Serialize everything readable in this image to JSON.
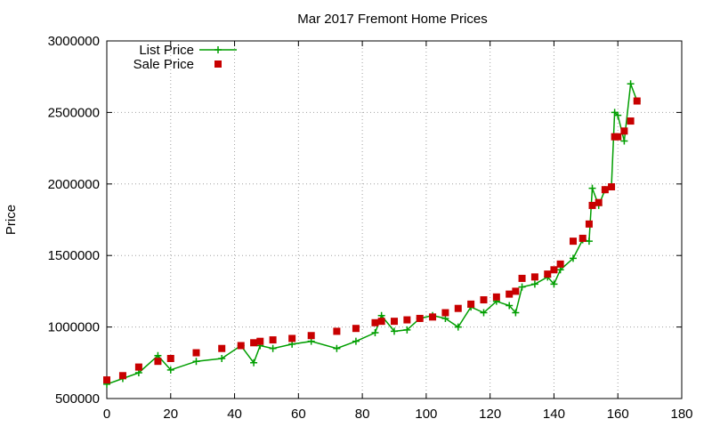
{
  "chart_data": {
    "type": "line",
    "title": "Mar 2017 Fremont Home Prices",
    "xlabel": "",
    "ylabel": "Price",
    "xlim": [
      0,
      180
    ],
    "ylim": [
      500000,
      3000000
    ],
    "x_ticks": [
      "0",
      "20",
      "40",
      "60",
      "80",
      "100",
      "120",
      "140",
      "160",
      "180"
    ],
    "y_ticks": [
      "500000",
      "1000000",
      "1500000",
      "2000000",
      "2500000",
      "3000000"
    ],
    "grid": true,
    "legend_position": "top-left",
    "series": [
      {
        "name": "List Price",
        "style": "line-with-plus-markers",
        "color": "#009e00",
        "x": [
          0,
          5,
          10,
          16,
          20,
          28,
          36,
          42,
          46,
          48,
          52,
          58,
          64,
          72,
          78,
          84,
          86,
          90,
          94,
          98,
          102,
          106,
          110,
          114,
          118,
          122,
          126,
          128,
          130,
          134,
          138,
          140,
          142,
          146,
          149,
          151,
          152,
          154,
          156,
          158,
          159,
          160,
          162,
          164,
          166
        ],
        "y": [
          600000,
          640000,
          680000,
          800000,
          700000,
          760000,
          780000,
          870000,
          750000,
          870000,
          850000,
          880000,
          900000,
          850000,
          900000,
          960000,
          1080000,
          970000,
          980000,
          1060000,
          1080000,
          1060000,
          1000000,
          1140000,
          1100000,
          1180000,
          1150000,
          1100000,
          1280000,
          1300000,
          1350000,
          1300000,
          1400000,
          1480000,
          1610000,
          1600000,
          1970000,
          1850000,
          1960000,
          1980000,
          2500000,
          2480000,
          2300000,
          2700000,
          2580000
        ]
      },
      {
        "name": "Sale Price",
        "style": "square-markers",
        "color": "#c80000",
        "x": [
          0,
          5,
          10,
          16,
          20,
          28,
          36,
          42,
          46,
          48,
          52,
          58,
          64,
          72,
          78,
          84,
          86,
          90,
          94,
          98,
          102,
          106,
          110,
          114,
          118,
          122,
          126,
          128,
          130,
          134,
          138,
          140,
          142,
          146,
          149,
          151,
          152,
          154,
          156,
          158,
          159,
          160,
          162,
          164,
          166
        ],
        "y": [
          630000,
          660000,
          720000,
          760000,
          780000,
          820000,
          850000,
          870000,
          890000,
          900000,
          910000,
          920000,
          940000,
          970000,
          990000,
          1030000,
          1040000,
          1040000,
          1050000,
          1060000,
          1070000,
          1100000,
          1130000,
          1160000,
          1190000,
          1210000,
          1230000,
          1250000,
          1340000,
          1350000,
          1370000,
          1400000,
          1440000,
          1600000,
          1620000,
          1720000,
          1850000,
          1870000,
          1960000,
          1980000,
          2330000,
          2330000,
          2370000,
          2440000,
          2580000
        ]
      }
    ]
  }
}
